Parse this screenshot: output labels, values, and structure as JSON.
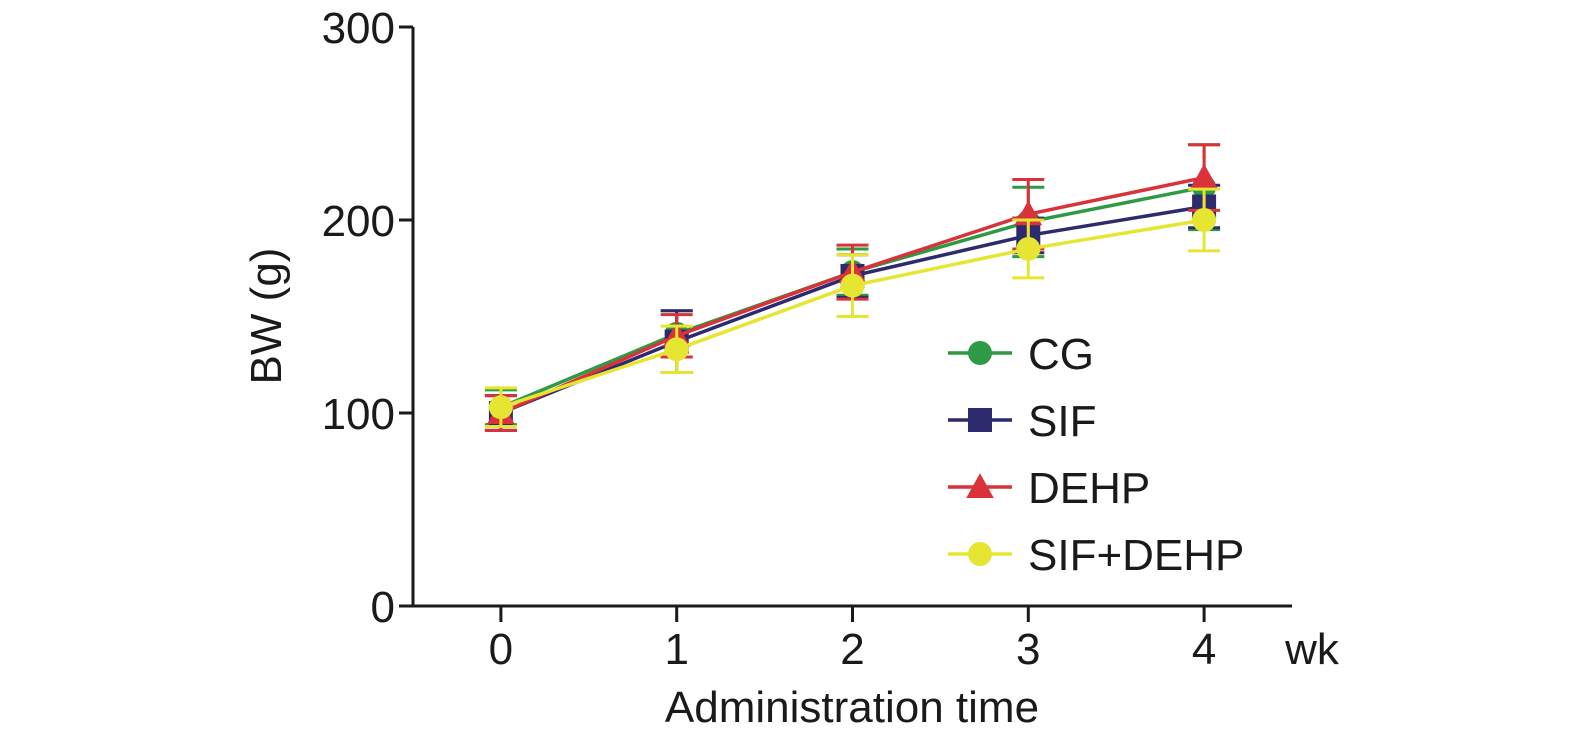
{
  "chart_data": {
    "type": "line",
    "title": "",
    "xlabel": "Administration time",
    "x_unit": "wk",
    "ylabel": "BW (g)",
    "x": [
      0,
      1,
      2,
      3,
      4
    ],
    "xlim": [
      -0.5,
      4.5
    ],
    "ylim": [
      0,
      300
    ],
    "x_ticks": [
      "0",
      "1",
      "2",
      "3",
      "4"
    ],
    "y_ticks": [
      "0",
      "100",
      "200",
      "300"
    ],
    "grid": false,
    "legend_position": "center-right",
    "series": [
      {
        "name": "CG",
        "marker": "circle",
        "color": "#2e9a45",
        "values": [
          103,
          141,
          173,
          199,
          217
        ],
        "errors": [
          9,
          12,
          12,
          18,
          22
        ]
      },
      {
        "name": "SIF",
        "marker": "square",
        "color": "#2e2a6e",
        "values": [
          100,
          137,
          171,
          192,
          207
        ],
        "errors": [
          9,
          16,
          11,
          9,
          11
        ]
      },
      {
        "name": "DEHP",
        "marker": "triangle",
        "color": "#d9323a",
        "values": [
          100,
          140,
          173,
          203,
          222
        ],
        "errors": [
          9,
          11,
          14,
          18,
          17
        ]
      },
      {
        "name": "SIF+DEHP",
        "marker": "circle",
        "color": "#e6e532",
        "values": [
          103,
          133,
          166,
          185,
          200
        ],
        "errors": [
          10,
          12,
          16,
          15,
          16
        ]
      }
    ]
  }
}
